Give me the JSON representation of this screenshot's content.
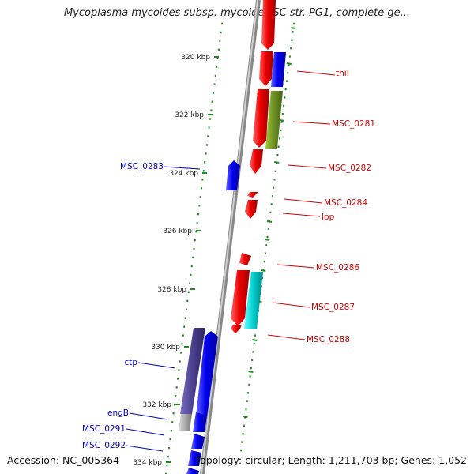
{
  "title": "Mycoplasma mycoides subsp. mycoides SC str. PG1, complete ge...",
  "footer": {
    "accession": "Accession: NC_005364",
    "stats": "Topology: circular; Length: 1,211,703 bp; Genes: 1,052"
  },
  "axis": {
    "unit": "kbp",
    "ticks": [
      {
        "label": "320 kbp"
      },
      {
        "label": "322 kbp"
      },
      {
        "label": "324 kbp"
      },
      {
        "label": "326 kbp"
      },
      {
        "label": "328 kbp"
      },
      {
        "label": "330 kbp"
      },
      {
        "label": "332 kbp"
      },
      {
        "label": "334 kbp"
      }
    ]
  },
  "colors": {
    "forward": "#ee0000",
    "reverse": "#0000ee",
    "olive": "#6b8e23",
    "cyan": "#00cccc",
    "purple": "#4b3f8f",
    "gray": "#aaaaaa",
    "axis": "#888888",
    "dots": "#228b22"
  },
  "gene_labels": [
    {
      "name": "thiI",
      "strand": "forward"
    },
    {
      "name": "MSC_0281",
      "strand": "forward"
    },
    {
      "name": "MSC_0282",
      "strand": "forward"
    },
    {
      "name": "MSC_0283",
      "strand": "reverse"
    },
    {
      "name": "MSC_0284",
      "strand": "forward"
    },
    {
      "name": "lpp",
      "strand": "forward"
    },
    {
      "name": "MSC_0286",
      "strand": "forward"
    },
    {
      "name": "MSC_0287",
      "strand": "forward"
    },
    {
      "name": "MSC_0288",
      "strand": "forward"
    },
    {
      "name": "ctp",
      "strand": "reverse"
    },
    {
      "name": "engB",
      "strand": "reverse"
    },
    {
      "name": "MSC_0291",
      "strand": "reverse"
    },
    {
      "name": "MSC_0292",
      "strand": "reverse"
    }
  ]
}
